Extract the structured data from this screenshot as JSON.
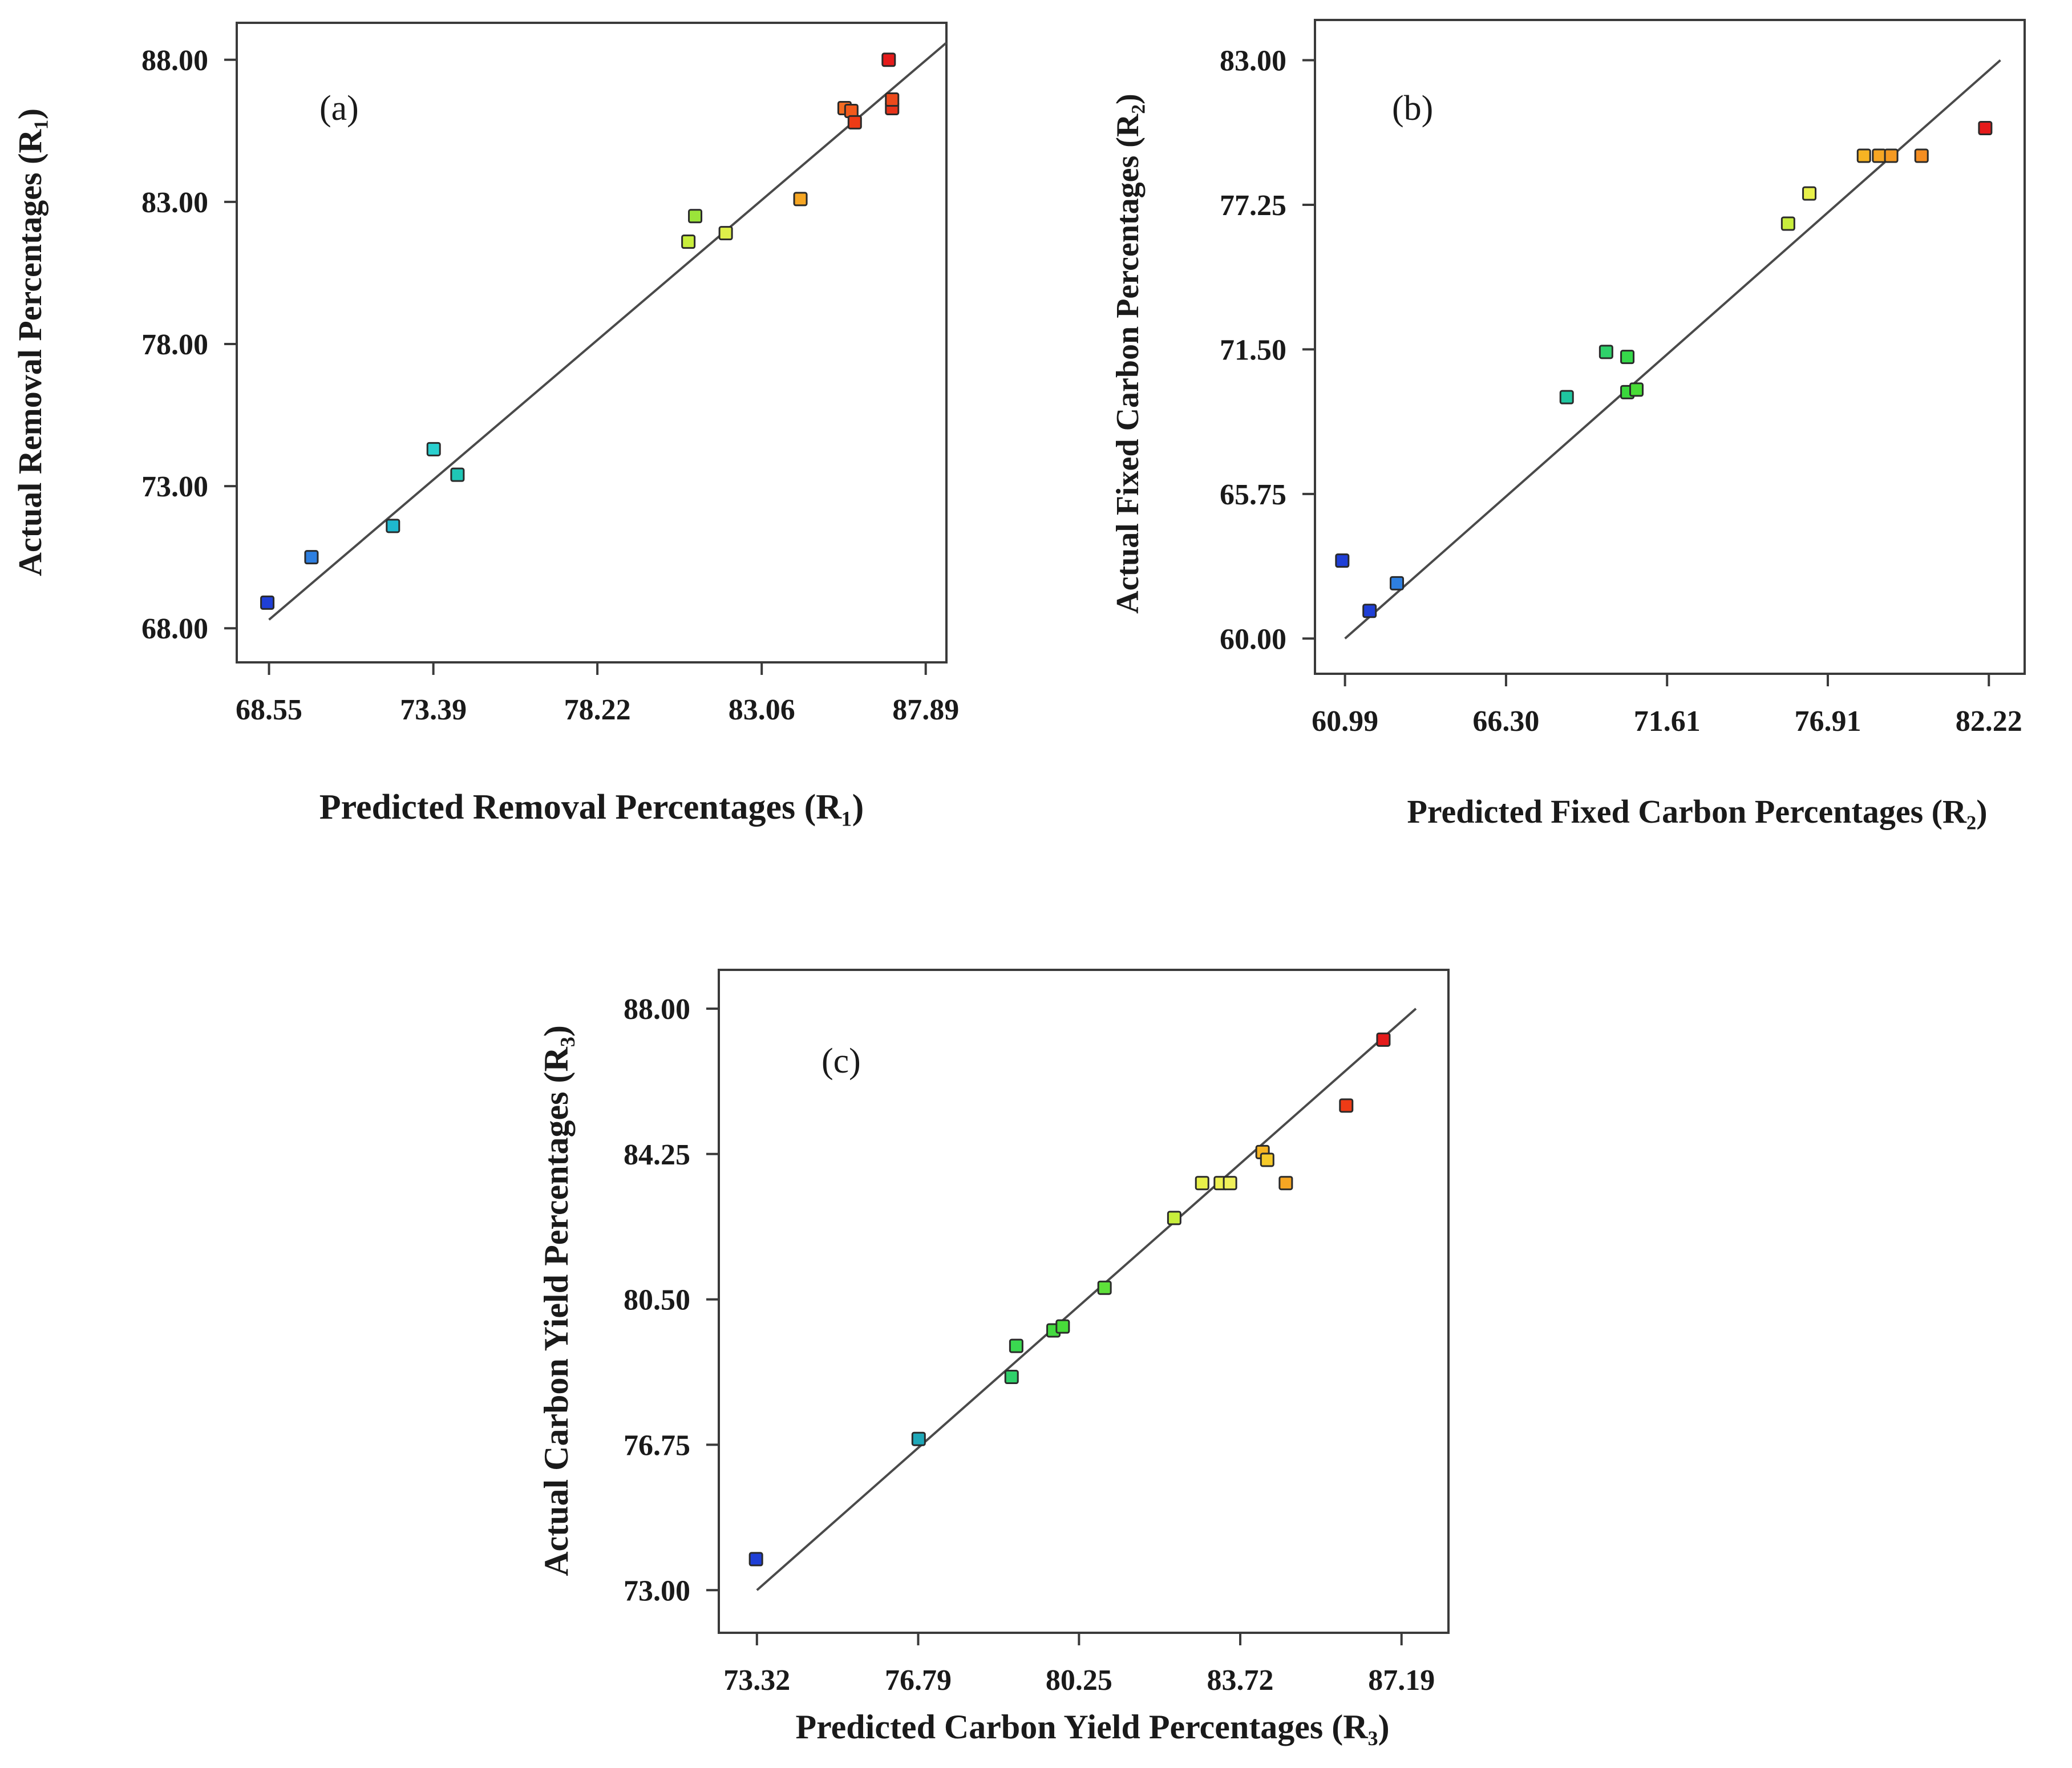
{
  "chart_data": [
    {
      "type": "scatter",
      "panel_label": "(a)",
      "xlabel": "Predicted Removal Percentages (R₁)",
      "ylabel": "Actual Removal Percentages (R₁)",
      "xticks": [
        68.55,
        73.39,
        78.22,
        83.06,
        87.89
      ],
      "xtick_labels": [
        "68.55",
        "73.39",
        "78.22",
        "83.06",
        "87.89"
      ],
      "yticks": [
        68,
        73,
        78,
        83,
        88
      ],
      "ytick_labels": [
        "68.00",
        "73.00",
        "78.00",
        "83.00",
        "88.00"
      ],
      "xlim": [
        67.6,
        88.5
      ],
      "ylim": [
        66.8,
        89.3
      ],
      "line": [
        [
          68.55,
          68.3
        ],
        [
          88.5,
          88.6
        ]
      ],
      "points": [
        {
          "x": 68.5,
          "y": 68.9,
          "color": "#1f3fd6"
        },
        {
          "x": 69.8,
          "y": 70.5,
          "color": "#2e7fe0"
        },
        {
          "x": 72.2,
          "y": 71.6,
          "color": "#1fb8cf"
        },
        {
          "x": 73.4,
          "y": 74.3,
          "color": "#2ad0cf"
        },
        {
          "x": 74.1,
          "y": 73.4,
          "color": "#1fc6b6"
        },
        {
          "x": 80.9,
          "y": 81.6,
          "color": "#c8ee3c"
        },
        {
          "x": 81.1,
          "y": 82.5,
          "color": "#9be43a"
        },
        {
          "x": 82.0,
          "y": 81.9,
          "color": "#dff04a"
        },
        {
          "x": 84.2,
          "y": 83.1,
          "color": "#f6a623"
        },
        {
          "x": 85.5,
          "y": 86.3,
          "color": "#f36b22"
        },
        {
          "x": 85.7,
          "y": 86.2,
          "color": "#f25a1c"
        },
        {
          "x": 85.8,
          "y": 85.8,
          "color": "#ee3b16"
        },
        {
          "x": 86.8,
          "y": 88.0,
          "color": "#e51b1b"
        },
        {
          "x": 86.9,
          "y": 86.3,
          "color": "#e8331a"
        },
        {
          "x": 86.9,
          "y": 86.6,
          "color": "#ec4a1c"
        }
      ]
    },
    {
      "type": "scatter",
      "panel_label": "(b)",
      "xlabel": "Predicted Fixed Carbon Percentages (R₂)",
      "ylabel": "Actual Fixed Carbon Percentages (R₂)",
      "xticks": [
        60.99,
        66.3,
        71.61,
        76.91,
        82.22
      ],
      "xtick_labels": [
        "60.99",
        "66.30",
        "71.61",
        "76.91",
        "82.22"
      ],
      "yticks": [
        60,
        65.75,
        71.5,
        77.25,
        83
      ],
      "ytick_labels": [
        "60.00",
        "65.75",
        "71.50",
        "77.25",
        "83.00"
      ],
      "xlim": [
        60.0,
        83.4
      ],
      "ylim": [
        58.6,
        84.6
      ],
      "line": [
        [
          60.99,
          60.0
        ],
        [
          82.6,
          83.0
        ]
      ],
      "points": [
        {
          "x": 60.9,
          "y": 63.1,
          "color": "#1f3fd6"
        },
        {
          "x": 61.8,
          "y": 61.1,
          "color": "#1f3fd6"
        },
        {
          "x": 62.7,
          "y": 62.2,
          "color": "#2e7fe0"
        },
        {
          "x": 68.3,
          "y": 69.6,
          "color": "#1fc6a0"
        },
        {
          "x": 69.6,
          "y": 71.4,
          "color": "#2fd06a"
        },
        {
          "x": 70.3,
          "y": 71.2,
          "color": "#36d84a"
        },
        {
          "x": 70.3,
          "y": 69.8,
          "color": "#3ad83c"
        },
        {
          "x": 70.6,
          "y": 69.9,
          "color": "#48dc36"
        },
        {
          "x": 75.6,
          "y": 76.5,
          "color": "#c8ee3c"
        },
        {
          "x": 76.3,
          "y": 77.7,
          "color": "#e8f04a"
        },
        {
          "x": 78.1,
          "y": 79.2,
          "color": "#f6b423"
        },
        {
          "x": 78.6,
          "y": 79.2,
          "color": "#f6a623"
        },
        {
          "x": 79.0,
          "y": 79.2,
          "color": "#f59a22"
        },
        {
          "x": 80.0,
          "y": 79.2,
          "color": "#f58e22"
        },
        {
          "x": 82.1,
          "y": 80.3,
          "color": "#e51b1b"
        }
      ]
    },
    {
      "type": "scatter",
      "panel_label": "(c)",
      "xlabel": "Predicted Carbon Yield Percentages (R₃)",
      "ylabel": "Actual Carbon Yield Percentages (R₃)",
      "xticks": [
        73.32,
        76.79,
        80.25,
        83.72,
        87.19
      ],
      "xtick_labels": [
        "73.32",
        "76.79",
        "80.25",
        "83.72",
        "87.19"
      ],
      "yticks": [
        73,
        76.75,
        80.5,
        84.25,
        88
      ],
      "ytick_labels": [
        "73.00",
        "76.75",
        "80.50",
        "84.25",
        "88.00"
      ],
      "xlim": [
        72.5,
        88.2
      ],
      "ylim": [
        71.9,
        89.0
      ],
      "line": [
        [
          73.32,
          73.0
        ],
        [
          87.5,
          88.0
        ]
      ],
      "points": [
        {
          "x": 73.3,
          "y": 73.8,
          "color": "#1f3fd6"
        },
        {
          "x": 76.8,
          "y": 76.9,
          "color": "#1fa8b8"
        },
        {
          "x": 78.8,
          "y": 78.5,
          "color": "#2fd06a"
        },
        {
          "x": 78.9,
          "y": 79.3,
          "color": "#3ad850"
        },
        {
          "x": 79.7,
          "y": 79.7,
          "color": "#44da40"
        },
        {
          "x": 79.9,
          "y": 79.8,
          "color": "#48dc3a"
        },
        {
          "x": 80.8,
          "y": 80.8,
          "color": "#5ee03a"
        },
        {
          "x": 82.3,
          "y": 82.6,
          "color": "#c8ee3c"
        },
        {
          "x": 82.9,
          "y": 83.5,
          "color": "#e8f04a"
        },
        {
          "x": 83.3,
          "y": 83.5,
          "color": "#eef050"
        },
        {
          "x": 83.5,
          "y": 83.5,
          "color": "#f0f05a"
        },
        {
          "x": 84.2,
          "y": 84.3,
          "color": "#f6b423"
        },
        {
          "x": 84.3,
          "y": 84.1,
          "color": "#f6ca2a"
        },
        {
          "x": 84.7,
          "y": 83.5,
          "color": "#f6a623"
        },
        {
          "x": 86.0,
          "y": 85.5,
          "color": "#ee3b16"
        },
        {
          "x": 86.8,
          "y": 87.2,
          "color": "#e51b1b"
        }
      ]
    }
  ]
}
